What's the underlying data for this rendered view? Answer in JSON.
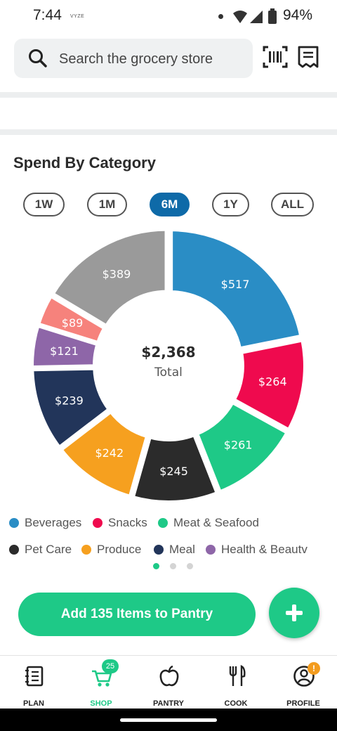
{
  "status_bar": {
    "time": "7:44",
    "carrier": "VYZE",
    "battery": "94%"
  },
  "search": {
    "placeholder": "Search the grocery store"
  },
  "spend": {
    "title": "Spend By Category",
    "ranges": [
      "1W",
      "1M",
      "6M",
      "1Y",
      "ALL"
    ],
    "selected_range": "6M"
  },
  "chart_data": {
    "type": "pie",
    "style": "donut",
    "center_value": "$2,368",
    "center_label": "Total",
    "slices": [
      {
        "label": "Beverages",
        "value": 517,
        "display": "$517",
        "color": "#2a8dc5"
      },
      {
        "label": "Snacks",
        "value": 264,
        "display": "$264",
        "color": "#ef0a4e"
      },
      {
        "label": "Meat & Seafood",
        "value": 261,
        "display": "$261",
        "color": "#1ec987"
      },
      {
        "label": "Pet Care",
        "value": 245,
        "display": "$245",
        "color": "#2b2b2b"
      },
      {
        "label": "Produce",
        "value": 242,
        "display": "$242",
        "color": "#f6a01f"
      },
      {
        "label": "Meal",
        "value": 239,
        "display": "$239",
        "color": "#22355a"
      },
      {
        "label": "Health & Beauty",
        "value": 121,
        "display": "$121",
        "color": "#8e66a8"
      },
      {
        "label": "",
        "value": 89,
        "display": "$89",
        "color": "#f6827c"
      },
      {
        "label": "",
        "value": 389,
        "display": "$389",
        "color": "#9a9a9a"
      }
    ]
  },
  "legend": [
    {
      "label": "Beverages",
      "color": "#2a8dc5"
    },
    {
      "label": "Snacks",
      "color": "#ef0a4e"
    },
    {
      "label": "Meat & Seafood",
      "color": "#1ec987"
    },
    {
      "label": "Pet Care",
      "color": "#2b2b2b"
    },
    {
      "label": "Produce",
      "color": "#f6a01f"
    },
    {
      "label": "Meal",
      "color": "#22355a"
    },
    {
      "label": "Health & Beautv",
      "color": "#8e66a8"
    }
  ],
  "pager": {
    "count": 3,
    "active_index": 0
  },
  "actions": {
    "add_label": "Add 135 Items to Pantry",
    "fab_symbol": "+"
  },
  "nav": {
    "items": [
      {
        "label": "PLAN",
        "icon": "notebook-icon"
      },
      {
        "label": "SHOP",
        "icon": "cart-icon"
      },
      {
        "label": "PANTRY",
        "icon": "apple-icon"
      },
      {
        "label": "COOK",
        "icon": "utensils-icon"
      },
      {
        "label": "PROFILE",
        "icon": "profile-icon"
      }
    ],
    "active": "SHOP",
    "shop_badge": "25",
    "profile_alert": "!"
  },
  "colors": {
    "accent": "#1ec987",
    "selected_pill": "#0e6aa8"
  }
}
